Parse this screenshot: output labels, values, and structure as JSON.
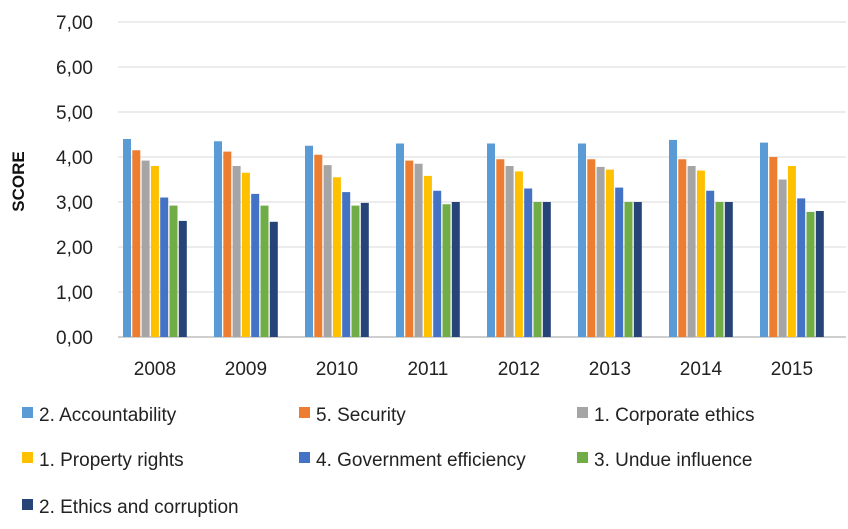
{
  "chart_data": {
    "type": "bar",
    "title": "",
    "xlabel": "",
    "ylabel": "SCORE",
    "ylim": [
      0,
      7
    ],
    "yticks": [
      "0,00",
      "1,00",
      "2,00",
      "3,00",
      "4,00",
      "5,00",
      "6,00",
      "7,00"
    ],
    "grid": true,
    "legend_position": "bottom",
    "categories": [
      "2008",
      "2009",
      "2010",
      "2011",
      "2012",
      "2013",
      "2014",
      "2015"
    ],
    "series": [
      {
        "name": "2. Accountability",
        "color": "#5B9BD5",
        "values": [
          4.4,
          4.35,
          4.25,
          4.3,
          4.3,
          4.3,
          4.38,
          4.32
        ]
      },
      {
        "name": "5. Security",
        "color": "#ED7D31",
        "values": [
          4.15,
          4.12,
          4.05,
          3.92,
          3.95,
          3.95,
          3.95,
          4.0
        ]
      },
      {
        "name": "1. Corporate ethics",
        "color": "#A5A5A5",
        "values": [
          3.92,
          3.8,
          3.82,
          3.85,
          3.8,
          3.78,
          3.8,
          3.5
        ]
      },
      {
        "name": "1. Property rights",
        "color": "#FFC000",
        "values": [
          3.8,
          3.65,
          3.55,
          3.58,
          3.68,
          3.72,
          3.7,
          3.8
        ]
      },
      {
        "name": "4. Government efficiency",
        "color": "#4472C4",
        "values": [
          3.1,
          3.18,
          3.22,
          3.25,
          3.3,
          3.32,
          3.25,
          3.08
        ]
      },
      {
        "name": "3. Undue influence",
        "color": "#70AD47",
        "values": [
          2.92,
          2.92,
          2.92,
          2.95,
          3.0,
          3.0,
          3.0,
          2.78
        ]
      },
      {
        "name": "2. Ethics and corruption",
        "color": "#264478",
        "values": [
          2.58,
          2.56,
          2.98,
          3.0,
          3.0,
          3.0,
          3.0,
          2.8
        ]
      }
    ]
  }
}
